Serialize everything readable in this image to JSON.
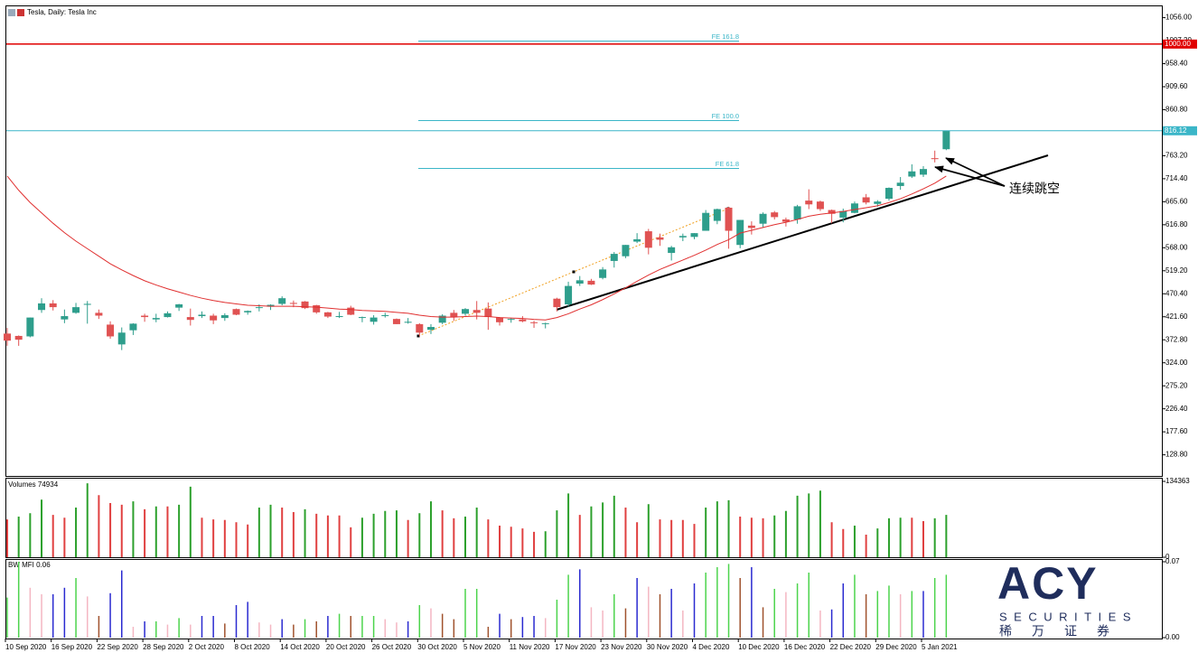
{
  "chart_data": {
    "type": "candlestick",
    "title": "Tesla, Daily:  Tesla Inc",
    "categories": [
      "10 Sep 2020",
      null,
      null,
      null,
      "16 Sep 2020",
      null,
      null,
      null,
      "22 Sep 2020",
      null,
      null,
      null,
      "28 Sep 2020",
      null,
      null,
      null,
      "2 Oct 2020",
      null,
      null,
      null,
      "8 Oct 2020",
      null,
      null,
      null,
      "14 Oct 2020",
      null,
      null,
      null,
      "20 Oct 2020",
      null,
      null,
      null,
      "26 Oct 2020",
      null,
      null,
      null,
      "30 Oct 2020",
      null,
      null,
      null,
      "5 Nov 2020",
      null,
      null,
      null,
      "11 Nov 2020",
      null,
      null,
      null,
      "17 Nov 2020",
      null,
      null,
      null,
      "23 Nov 2020",
      null,
      null,
      null,
      "30 Nov 2020",
      null,
      null,
      null,
      "4 Dec 2020",
      null,
      null,
      null,
      "10 Dec 2020",
      null,
      null,
      null,
      "16 Dec 2020",
      null,
      null,
      null,
      "22 Dec 2020",
      null,
      null,
      null,
      "29 Dec 2020",
      null,
      null,
      null,
      "5 Jan 2021",
      null,
      null
    ],
    "open": [
      386,
      381,
      380,
      436,
      450,
      416,
      430,
      447,
      430,
      405,
      363,
      393,
      424,
      416,
      421,
      441,
      421,
      423,
      424,
      419,
      438,
      431,
      442,
      443,
      449,
      451,
      454,
      446,
      431,
      422,
      441,
      421,
      411,
      424,
      417,
      409,
      406,
      394,
      409,
      430,
      428,
      436,
      439,
      420,
      416,
      416,
      410,
      408,
      460,
      448,
      492,
      498,
      504,
      540,
      550,
      581,
      603,
      590,
      557,
      590,
      591,
      604,
      625,
      653,
      574,
      615,
      619,
      643,
      628,
      628,
      668,
      666,
      648,
      632,
      642,
      675,
      661,
      672,
      699,
      719,
      723,
      758,
      777
    ],
    "high": [
      398,
      382,
      420,
      461,
      457,
      437,
      451,
      455,
      437,
      412,
      399,
      408,
      428,
      428,
      433,
      449,
      439,
      433,
      428,
      429,
      439,
      435,
      448,
      448,
      465,
      456,
      455,
      447,
      432,
      432,
      445,
      422,
      425,
      430,
      418,
      419,
      408,
      406,
      427,
      436,
      440,
      455,
      452,
      421,
      419,
      423,
      413,
      409,
      462,
      496,
      508,
      502,
      527,
      559,
      574,
      599,
      608,
      598,
      572,
      598,
      599,
      648,
      651,
      655,
      627,
      624,
      643,
      646,
      632,
      659,
      692,
      668,
      649,
      651,
      666,
      682,
      669,
      696,
      718,
      745,
      741,
      774,
      816
    ],
    "low": [
      360,
      360,
      378,
      430,
      435,
      408,
      428,
      407,
      417,
      375,
      351,
      383,
      411,
      410,
      420,
      434,
      403,
      419,
      406,
      413,
      425,
      426,
      433,
      436,
      446,
      442,
      438,
      428,
      419,
      419,
      425,
      410,
      405,
      420,
      406,
      407,
      380,
      385,
      406,
      413,
      424,
      416,
      394,
      403,
      409,
      410,
      398,
      397,
      433,
      443,
      487,
      489,
      501,
      526,
      546,
      578,
      554,
      572,
      541,
      582,
      586,
      604,
      618,
      566,
      567,
      596,
      610,
      628,
      613,
      619,
      650,
      646,
      620,
      622,
      641,
      660,
      655,
      668,
      691,
      716,
      718,
      749,
      775
    ],
    "close": [
      371,
      373,
      420,
      450,
      442,
      423,
      442,
      449,
      424,
      380,
      388,
      407,
      421,
      419,
      429,
      448,
      415,
      426,
      414,
      425,
      426,
      434,
      442,
      447,
      461,
      449,
      440,
      431,
      422,
      423,
      426,
      421,
      420,
      425,
      406,
      411,
      388,
      400,
      424,
      421,
      438,
      430,
      421,
      410,
      417,
      412,
      409,
      408,
      442,
      487,
      499,
      490,
      522,
      555,
      574,
      586,
      568,
      585,
      569,
      593,
      599,
      642,
      650,
      604,
      627,
      610,
      640,
      633,
      623,
      656,
      660,
      650,
      640,
      646,
      662,
      664,
      666,
      695,
      706,
      730,
      735,
      756,
      816
    ],
    "up_color": "#2e9e8c",
    "down_color": "#e05252",
    "ylim": [
      84,
      1082
    ],
    "yticks": [
      {
        "value": 128.8,
        "label": "128.80"
      },
      {
        "value": 177.6,
        "label": "177.60"
      },
      {
        "value": 226.4,
        "label": "226.40"
      },
      {
        "value": 275.2,
        "label": "275.20"
      },
      {
        "value": 324,
        "label": "324.00"
      },
      {
        "value": 372.8,
        "label": "372.80"
      },
      {
        "value": 421.6,
        "label": "421.60"
      },
      {
        "value": 470.4,
        "label": "470.40"
      },
      {
        "value": 519.2,
        "label": "519.20"
      },
      {
        "value": 568,
        "label": "568.00"
      },
      {
        "value": 616.8,
        "label": "616.80"
      },
      {
        "value": 665.6,
        "label": "665.60"
      },
      {
        "value": 714.4,
        "label": "714.40"
      },
      {
        "value": 763.2,
        "label": "763.20"
      },
      {
        "value": 860.8,
        "label": "860.80"
      },
      {
        "value": 909.6,
        "label": "909.60"
      },
      {
        "value": 958.4,
        "label": "958.40"
      },
      {
        "value": 1007.2,
        "label": "1007.20"
      },
      {
        "value": 1056,
        "label": "1056.00"
      }
    ],
    "moving_average": {
      "color": "#e03030",
      "values": [
        720,
        690,
        664,
        642,
        620,
        600,
        582,
        566,
        550,
        534,
        521,
        509,
        498,
        489,
        481,
        474,
        467,
        461,
        456,
        452,
        449,
        446,
        445,
        444,
        444,
        444,
        443,
        442,
        440,
        438,
        437,
        435,
        434,
        433,
        431,
        429,
        425,
        422,
        421,
        421,
        422,
        423,
        422,
        420,
        419,
        418,
        416,
        415,
        420,
        428,
        438,
        447,
        458,
        470,
        483,
        497,
        510,
        522,
        532,
        542,
        552,
        563,
        575,
        585,
        599,
        605,
        611,
        617,
        622,
        628,
        635,
        639,
        642,
        645,
        649,
        653,
        657,
        664,
        672,
        682,
        693,
        705,
        720
      ]
    },
    "price_lines": [
      {
        "value": 1000,
        "label": "1000.00",
        "color": "#e00000"
      },
      {
        "value": 816.12,
        "label": "816.12",
        "color": "#3bb6c8"
      }
    ],
    "annotations": [
      "FE 161.8",
      "FE 100.0",
      "FE 61.8",
      "连续跳空"
    ],
    "volumes": {
      "title": "Volumes 74934",
      "up_color": "#2ca02c",
      "down_color": "#e04040",
      "ylim": [
        0,
        134363
      ],
      "yticks": [
        0,
        134363
      ],
      "values": [
        67000,
        72000,
        78000,
        102000,
        75000,
        70000,
        88000,
        131000,
        110000,
        96000,
        93000,
        99000,
        85000,
        90000,
        90000,
        93000,
        125000,
        70000,
        67000,
        66000,
        62000,
        58000,
        88000,
        93000,
        88000,
        80000,
        85000,
        77000,
        74000,
        74000,
        53000,
        70000,
        77000,
        82000,
        83000,
        66000,
        78000,
        99000,
        83000,
        69000,
        72000,
        88000,
        67000,
        56000,
        54000,
        51000,
        45000,
        46000,
        83000,
        113000,
        75000,
        90000,
        97000,
        109000,
        88000,
        62000,
        94000,
        67000,
        66000,
        66000,
        59000,
        88000,
        99000,
        101000,
        72000,
        70000,
        69000,
        74000,
        82000,
        109000,
        113000,
        118000,
        62000,
        50000,
        56000,
        40000,
        51000,
        69000,
        70000,
        70000,
        64000,
        69000,
        75000
      ]
    },
    "mfi": {
      "title": "BW MFI 0.06",
      "colors": [
        "#4cd44c",
        "#a0522d",
        "#2a2ad0",
        "#f4b6c2"
      ],
      "ylim": [
        0,
        0.07
      ],
      "yticks": [
        {
          "value": 0,
          "label": "0.00"
        },
        {
          "value": 0.07,
          "label": "0.07"
        }
      ],
      "values": [
        0.037,
        0.07,
        0.046,
        0.04,
        0.04,
        0.046,
        0.055,
        0.038,
        0.02,
        0.041,
        0.062,
        0.01,
        0.015,
        0.015,
        0.012,
        0.018,
        0.012,
        0.02,
        0.02,
        0.013,
        0.03,
        0.033,
        0.014,
        0.012,
        0.017,
        0.012,
        0.017,
        0.015,
        0.02,
        0.022,
        0.02,
        0.02,
        0.02,
        0.017,
        0.014,
        0.015,
        0.03,
        0.027,
        0.022,
        0.017,
        0.045,
        0.045,
        0.01,
        0.022,
        0.017,
        0.019,
        0.02,
        0.018,
        0.035,
        0.058,
        0.063,
        0.028,
        0.025,
        0.04,
        0.027,
        0.055,
        0.047,
        0.04,
        0.045,
        0.025,
        0.05,
        0.06,
        0.065,
        0.068,
        0.055,
        0.065,
        0.028,
        0.045,
        0.042,
        0.05,
        0.06,
        0.025,
        0.026,
        0.05,
        0.058,
        0.04,
        0.043,
        0.048,
        0.04,
        0.043,
        0.043,
        0.055,
        0.058
      ]
    }
  },
  "logo": {
    "brand": "ACY",
    "sub": "SECURITIES",
    "chinese": "稀万证券"
  }
}
